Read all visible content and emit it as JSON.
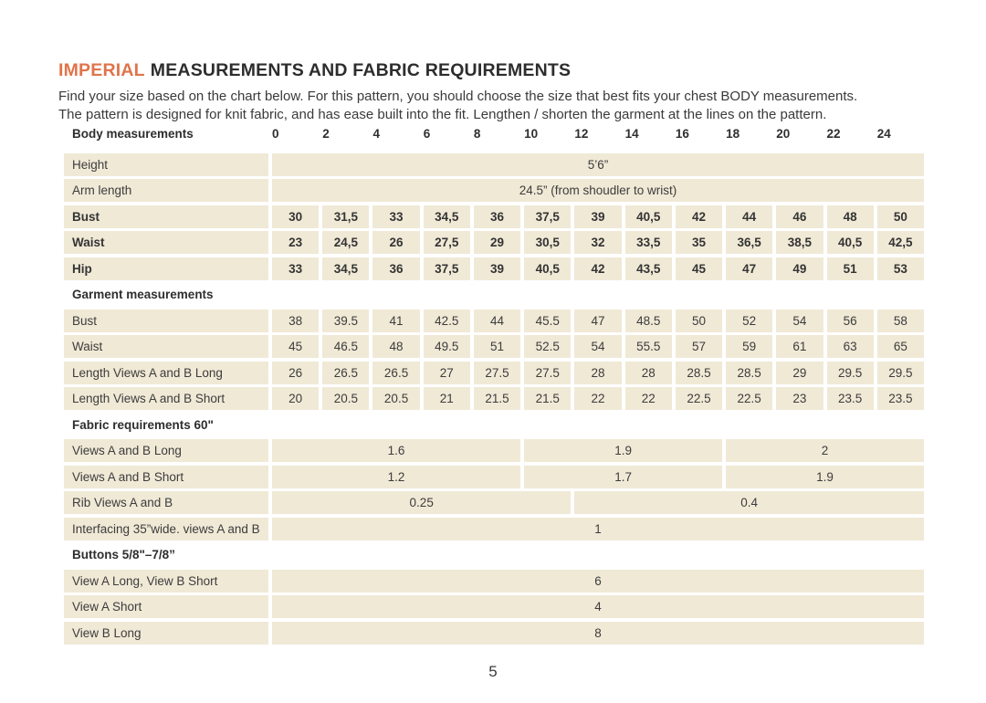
{
  "document": {
    "title": {
      "highlight": "IMPERIAL",
      "rest": "MEASUREMENTS AND FABRIC REQUIREMENTS"
    },
    "intro": [
      "Find your size based on the chart below. For this pattern, you should choose the size that best fits your chest BODY measurements.",
      "The pattern is designed for knit fabric, and has ease built into the fit. Lengthen / shorten the garment at the lines on the pattern."
    ],
    "page_number": "5"
  },
  "colors": {
    "accent_orange": "#E0744A",
    "cell_beige": "#F0E9D6",
    "text_dark": "#3C3C3C"
  },
  "table": {
    "rows": [
      {
        "type": "header",
        "label": "Body measurements",
        "cells": [
          "0",
          "2",
          "4",
          "6",
          "8",
          "10",
          "12",
          "14",
          "16",
          "18",
          "20",
          "22",
          "24"
        ]
      },
      {
        "type": "span",
        "label": "Height",
        "spans": [
          {
            "text": "5’6”",
            "cols": 13
          }
        ]
      },
      {
        "type": "span",
        "label": "Arm length",
        "spans": [
          {
            "text": "24.5” (from shoudler to wrist)",
            "cols": 13
          }
        ]
      },
      {
        "type": "values",
        "emphasis": true,
        "label": "Bust",
        "cells": [
          "30",
          "31,5",
          "33",
          "34,5",
          "36",
          "37,5",
          "39",
          "40,5",
          "42",
          "44",
          "46",
          "48",
          "50"
        ]
      },
      {
        "type": "values",
        "emphasis": true,
        "label": "Waist",
        "cells": [
          "23",
          "24,5",
          "26",
          "27,5",
          "29",
          "30,5",
          "32",
          "33,5",
          "35",
          "36,5",
          "38,5",
          "40,5",
          "42,5"
        ]
      },
      {
        "type": "values",
        "emphasis": true,
        "label": "Hip",
        "cells": [
          "33",
          "34,5",
          "36",
          "37,5",
          "39",
          "40,5",
          "42",
          "43,5",
          "45",
          "47",
          "49",
          "51",
          "53"
        ]
      },
      {
        "type": "section",
        "label": "Garment measurements"
      },
      {
        "type": "values",
        "label": "Bust",
        "cells": [
          "38",
          "39.5",
          "41",
          "42.5",
          "44",
          "45.5",
          "47",
          "48.5",
          "50",
          "52",
          "54",
          "56",
          "58"
        ]
      },
      {
        "type": "values",
        "label": "Waist",
        "cells": [
          "45",
          "46.5",
          "48",
          "49.5",
          "51",
          "52.5",
          "54",
          "55.5",
          "57",
          "59",
          "61",
          "63",
          "65"
        ]
      },
      {
        "type": "values",
        "label": "Length Views A and B Long",
        "cells": [
          "26",
          "26.5",
          "26.5",
          "27",
          "27.5",
          "27.5",
          "28",
          "28",
          "28.5",
          "28.5",
          "29",
          "29.5",
          "29.5"
        ]
      },
      {
        "type": "values",
        "label": "Length Views A and B Short",
        "cells": [
          "20",
          "20.5",
          "20.5",
          "21",
          "21.5",
          "21.5",
          "22",
          "22",
          "22.5",
          "22.5",
          "23",
          "23.5",
          "23.5"
        ]
      },
      {
        "type": "section",
        "label": "Fabric requirements 60\""
      },
      {
        "type": "span",
        "label": "Views A and B Long",
        "spans": [
          {
            "text": "1.6",
            "cols": 5
          },
          {
            "text": "1.9",
            "cols": 4
          },
          {
            "text": "2",
            "cols": 4
          }
        ]
      },
      {
        "type": "span",
        "label": "Views A and B Short",
        "spans": [
          {
            "text": "1.2",
            "cols": 5
          },
          {
            "text": "1.7",
            "cols": 4
          },
          {
            "text": "1.9",
            "cols": 4
          }
        ]
      },
      {
        "type": "span",
        "label": "Rib Views A and B",
        "spans": [
          {
            "text": "0.25",
            "cols": 6
          },
          {
            "text": "0.4",
            "cols": 7
          }
        ]
      },
      {
        "type": "span",
        "label": "Interfacing 35”wide. views A and B",
        "spans": [
          {
            "text": "1",
            "cols": 13
          }
        ]
      },
      {
        "type": "section",
        "label": "Buttons 5/8\"–7/8”"
      },
      {
        "type": "span",
        "label": "View A Long, View B Short",
        "spans": [
          {
            "text": "6",
            "cols": 13
          }
        ]
      },
      {
        "type": "span",
        "label": "View A Short",
        "spans": [
          {
            "text": "4",
            "cols": 13
          }
        ]
      },
      {
        "type": "span",
        "label": "View B Long",
        "spans": [
          {
            "text": "8",
            "cols": 13
          }
        ]
      }
    ]
  }
}
